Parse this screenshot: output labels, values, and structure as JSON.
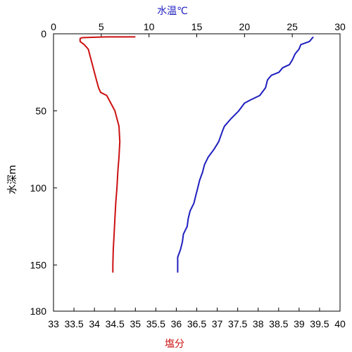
{
  "chart_data": {
    "type": "line",
    "title": "",
    "top_axis": {
      "label": "水温℃",
      "label_color": "#1f1fbf",
      "range": [
        0,
        30
      ],
      "ticks": [
        "0",
        "5",
        "10",
        "15",
        "20",
        "25",
        "30"
      ],
      "tick_values": [
        0,
        5,
        10,
        15,
        20,
        25,
        30
      ]
    },
    "bottom_axis": {
      "label": "塩分",
      "label_color": "#cc1111",
      "range": [
        33,
        40
      ],
      "ticks": [
        "33",
        "33.5",
        "34",
        "34.5",
        "35",
        "35.5",
        "36",
        "36.5",
        "37",
        "37.5",
        "38",
        "38.5",
        "39",
        "39.5",
        "40"
      ],
      "tick_values": [
        33,
        33.5,
        34,
        34.5,
        35,
        35.5,
        36,
        36.5,
        37,
        37.5,
        38,
        38.5,
        39,
        39.5,
        40
      ]
    },
    "y_axis": {
      "label": "水深m",
      "range": [
        0,
        180
      ],
      "inverted": true,
      "ticks": [
        "0",
        "50",
        "100",
        "150",
        "180"
      ],
      "tick_values": [
        0,
        50,
        100,
        150,
        180
      ]
    },
    "grid": false,
    "series": [
      {
        "axis": "top",
        "color": "#1f1fbf",
        "points": [
          {
            "depth": 2,
            "value": 27.2
          },
          {
            "depth": 5,
            "value": 26.8
          },
          {
            "depth": 7,
            "value": 25.9
          },
          {
            "depth": 10,
            "value": 25.7
          },
          {
            "depth": 13,
            "value": 25.3
          },
          {
            "depth": 17,
            "value": 25.0
          },
          {
            "depth": 20,
            "value": 24.7
          },
          {
            "depth": 22,
            "value": 24.0
          },
          {
            "depth": 25,
            "value": 23.6
          },
          {
            "depth": 27,
            "value": 22.8
          },
          {
            "depth": 30,
            "value": 22.4
          },
          {
            "depth": 35,
            "value": 22.2
          },
          {
            "depth": 40,
            "value": 21.6
          },
          {
            "depth": 43,
            "value": 20.6
          },
          {
            "depth": 45,
            "value": 20.0
          },
          {
            "depth": 50,
            "value": 19.4
          },
          {
            "depth": 55,
            "value": 18.6
          },
          {
            "depth": 60,
            "value": 17.9
          },
          {
            "depth": 63,
            "value": 17.7
          },
          {
            "depth": 70,
            "value": 17.3
          },
          {
            "depth": 75,
            "value": 16.8
          },
          {
            "depth": 80,
            "value": 16.2
          },
          {
            "depth": 85,
            "value": 15.8
          },
          {
            "depth": 90,
            "value": 15.6
          },
          {
            "depth": 95,
            "value": 15.3
          },
          {
            "depth": 100,
            "value": 15.1
          },
          {
            "depth": 105,
            "value": 14.9
          },
          {
            "depth": 110,
            "value": 14.7
          },
          {
            "depth": 115,
            "value": 14.3
          },
          {
            "depth": 120,
            "value": 14.1
          },
          {
            "depth": 125,
            "value": 14.0
          },
          {
            "depth": 130,
            "value": 13.6
          },
          {
            "depth": 135,
            "value": 13.5
          },
          {
            "depth": 140,
            "value": 13.3
          },
          {
            "depth": 145,
            "value": 13.0
          },
          {
            "depth": 150,
            "value": 13.0
          },
          {
            "depth": 155,
            "value": 13.0
          }
        ]
      },
      {
        "axis": "bottom",
        "color": "#cc1111",
        "points": [
          {
            "depth": 2,
            "value": 35.0
          },
          {
            "depth": 2,
            "value": 34.3
          },
          {
            "depth": 2.5,
            "value": 33.7
          },
          {
            "depth": 3,
            "value": 33.65
          },
          {
            "depth": 5,
            "value": 33.65
          },
          {
            "depth": 7,
            "value": 33.75
          },
          {
            "depth": 10,
            "value": 33.85
          },
          {
            "depth": 15,
            "value": 33.9
          },
          {
            "depth": 20,
            "value": 33.95
          },
          {
            "depth": 25,
            "value": 34.0
          },
          {
            "depth": 30,
            "value": 34.05
          },
          {
            "depth": 35,
            "value": 34.1
          },
          {
            "depth": 38,
            "value": 34.15
          },
          {
            "depth": 40,
            "value": 34.3
          },
          {
            "depth": 45,
            "value": 34.4
          },
          {
            "depth": 50,
            "value": 34.5
          },
          {
            "depth": 55,
            "value": 34.55
          },
          {
            "depth": 60,
            "value": 34.6
          },
          {
            "depth": 70,
            "value": 34.62
          },
          {
            "depth": 80,
            "value": 34.6
          },
          {
            "depth": 90,
            "value": 34.57
          },
          {
            "depth": 100,
            "value": 34.55
          },
          {
            "depth": 110,
            "value": 34.52
          },
          {
            "depth": 120,
            "value": 34.5
          },
          {
            "depth": 130,
            "value": 34.48
          },
          {
            "depth": 140,
            "value": 34.46
          },
          {
            "depth": 150,
            "value": 34.45
          },
          {
            "depth": 155,
            "value": 34.45
          }
        ]
      }
    ]
  }
}
